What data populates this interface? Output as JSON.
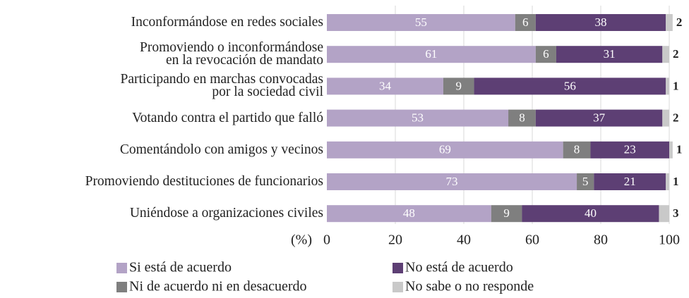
{
  "chart_data": {
    "type": "stacked_barh",
    "categories": [
      "Inconformándose en redes sociales",
      "Promoviendo o inconformándose\nen la revocación de mandato",
      "Participando en marchas convocadas\npor la sociedad civil",
      "Votando contra el partido que falló",
      "Comentándolo con amigos y vecinos",
      "Promoviendo destituciones de funcionarios",
      "Uniéndose a organizaciones civiles"
    ],
    "series": [
      {
        "name": "Si está de acuerdo",
        "color": "#b3a3c6",
        "values": [
          55,
          61,
          34,
          53,
          69,
          73,
          48
        ]
      },
      {
        "name": "Ni de acuerdo ni en desacuerdo",
        "color": "#7f7f7f",
        "values": [
          6,
          6,
          9,
          8,
          8,
          5,
          9
        ]
      },
      {
        "name": "No está de acuerdo",
        "color": "#5d3f74",
        "values": [
          38,
          31,
          56,
          37,
          23,
          21,
          40
        ]
      },
      {
        "name": "No sabe o no responde",
        "color": "#c9c9c9",
        "values": [
          2,
          2,
          1,
          2,
          1,
          1,
          3
        ]
      }
    ],
    "x_label": "(%)",
    "xlim": [
      0,
      100
    ],
    "xticks": [
      0,
      20,
      40,
      60,
      80,
      100
    ],
    "grid": true
  }
}
